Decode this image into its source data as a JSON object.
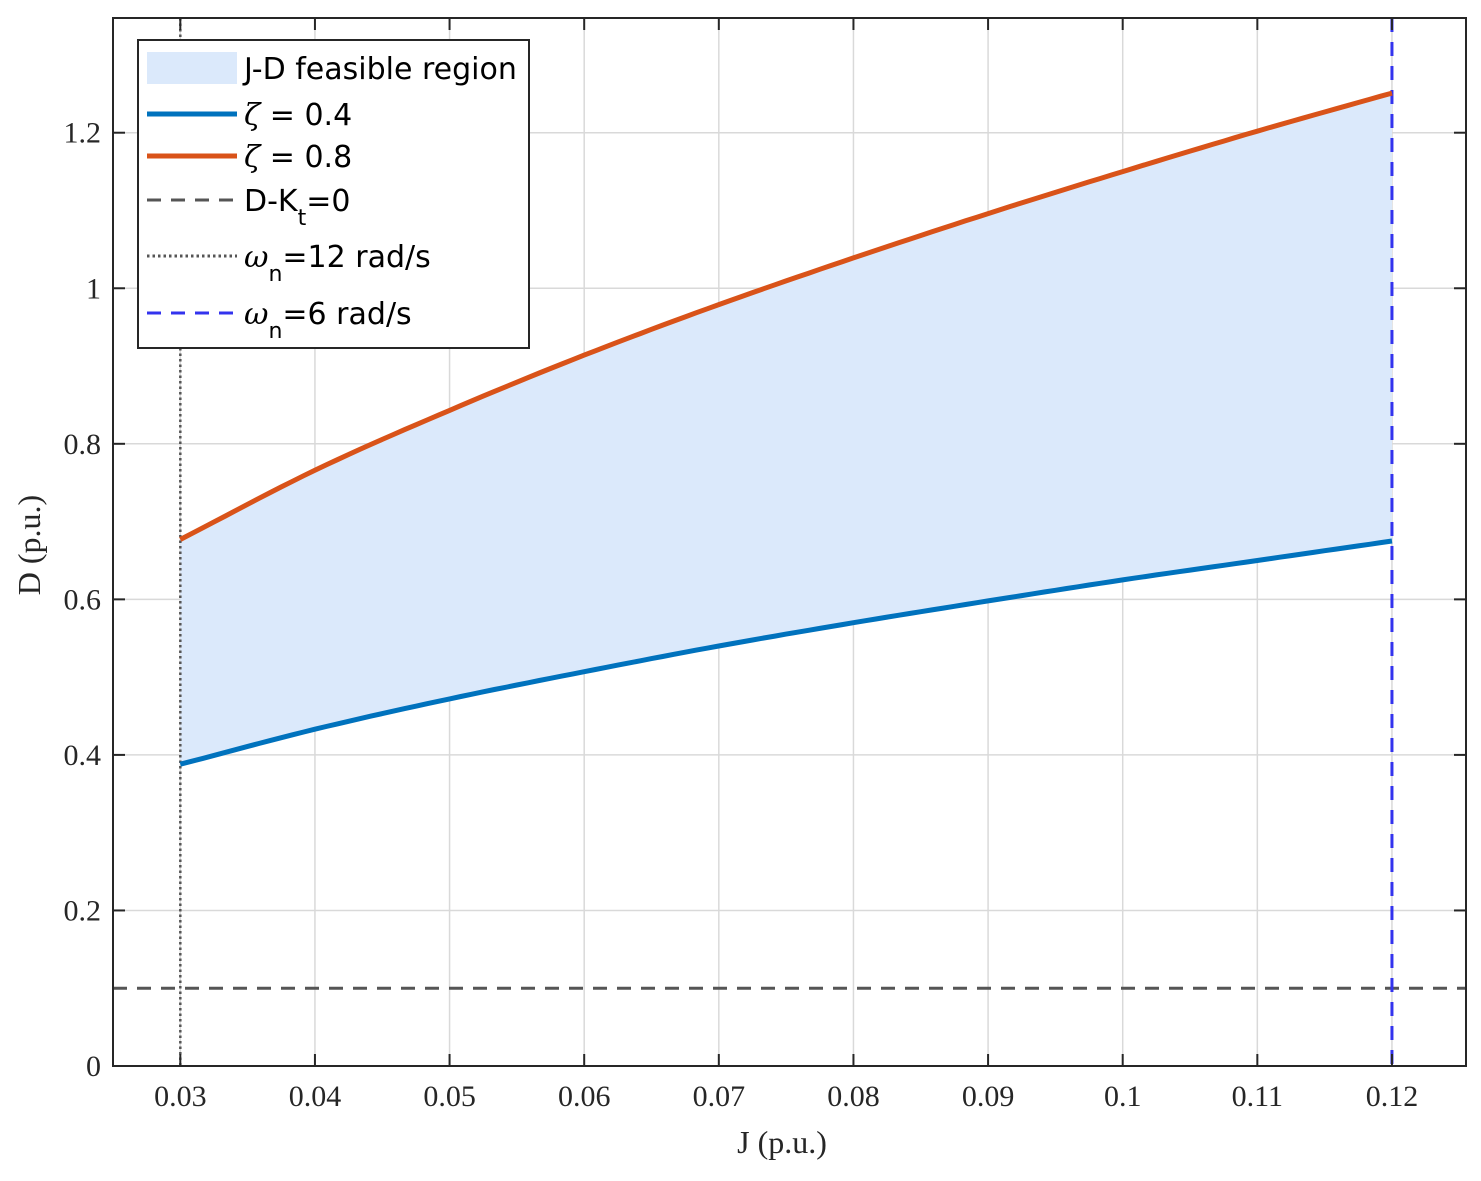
{
  "chart_data": {
    "type": "line",
    "xlabel": "J (p.u.)",
    "ylabel": "D (p.u.)",
    "xlim": [
      0.025,
      0.1255
    ],
    "ylim": [
      0,
      1.3475
    ],
    "xticks": [
      0.03,
      0.04,
      0.05,
      0.06,
      0.07,
      0.08,
      0.09,
      0.1,
      0.11,
      0.12
    ],
    "xtick_labels": [
      "0.03",
      "0.04",
      "0.05",
      "0.06",
      "0.07",
      "0.08",
      "0.09",
      "0.1",
      "0.11",
      "0.12"
    ],
    "yticks": [
      0,
      0.2,
      0.4,
      0.6,
      0.8,
      1,
      1.2
    ],
    "ytick_labels": [
      "0",
      "0.2",
      "0.4",
      "0.6",
      "0.8",
      "1",
      "1.2"
    ],
    "grid": true,
    "legend_position": "top-left",
    "x": [
      0.03,
      0.04,
      0.05,
      0.06,
      0.07,
      0.08,
      0.09,
      0.1,
      0.11,
      0.12
    ],
    "series": [
      {
        "name": "ζ = 0.4",
        "color": "#0072BD",
        "style": "solid",
        "values": [
          0.388,
          0.433,
          0.472,
          0.507,
          0.54,
          0.57,
          0.598,
          0.625,
          0.65,
          0.675
        ]
      },
      {
        "name": "ζ = 0.8",
        "color": "#D95319",
        "style": "solid",
        "values": [
          0.677,
          0.766,
          0.843,
          0.914,
          0.979,
          1.039,
          1.096,
          1.15,
          1.202,
          1.251
        ]
      }
    ],
    "feasible_region": {
      "name": "J-D feasible region",
      "color": "#dbe9fb",
      "lower_series": "ζ = 0.4",
      "upper_series": "ζ = 0.8"
    },
    "reference_lines": [
      {
        "name": "D-K_t=0",
        "orientation": "horizontal",
        "value": 0.1,
        "color": "#555555",
        "style": "dashed"
      },
      {
        "name": "ω_n=12 rad/s",
        "orientation": "vertical",
        "value": 0.03,
        "color": "#555555",
        "style": "dotted"
      },
      {
        "name": "ω_n=6 rad/s",
        "orientation": "vertical",
        "value": 0.12,
        "color": "#3333ee",
        "style": "dashed"
      }
    ],
    "legend": [
      {
        "label": "J-D feasible region",
        "kind": "patch"
      },
      {
        "label": "ζ = 0.4",
        "prefix": "ζ",
        "rest": " = 0.4",
        "kind": "line"
      },
      {
        "label": "ζ = 0.8",
        "prefix": "ζ",
        "rest": " = 0.8",
        "kind": "line"
      },
      {
        "label": "D-K_t=0",
        "prefix": "D-K",
        "sub": "t",
        "rest": "=0",
        "kind": "line"
      },
      {
        "label": "ω_n=12 rad/s",
        "prefix": "ω",
        "sub": "n",
        "rest": "=12 rad/s",
        "kind": "line"
      },
      {
        "label": "ω_n=6 rad/s",
        "prefix": "ω",
        "sub": "n",
        "rest": "=6 rad/s",
        "kind": "line"
      }
    ]
  }
}
